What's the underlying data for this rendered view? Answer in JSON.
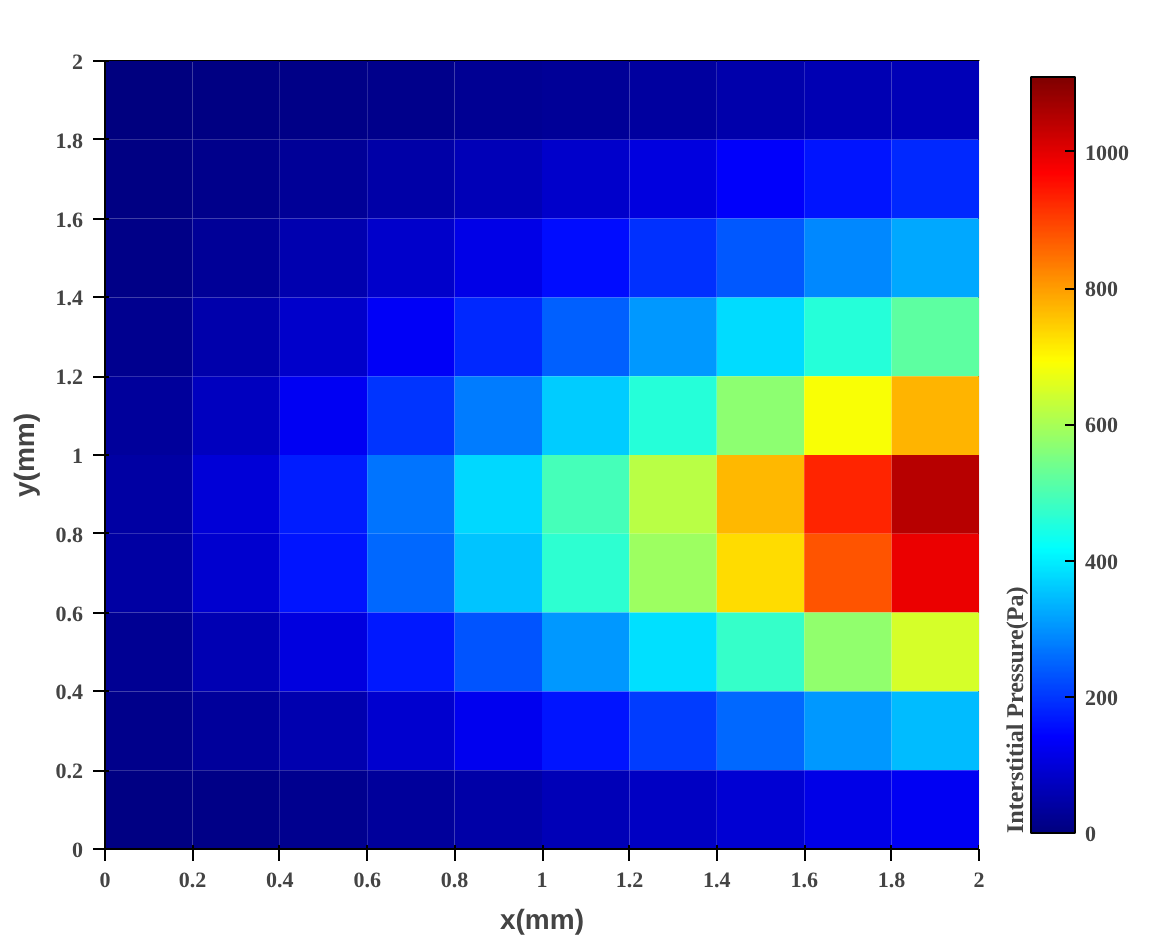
{
  "chart_data": {
    "type": "heatmap",
    "xlabel": "x(mm)",
    "ylabel": "y(mm)",
    "clabel": "Interstitial Pressure(Pa)",
    "x": [
      0.1,
      0.3,
      0.5,
      0.7,
      0.9,
      1.1,
      1.3,
      1.5,
      1.7,
      1.9
    ],
    "y": [
      1.9,
      1.7,
      1.5,
      1.3,
      1.1,
      0.9,
      0.7,
      0.5,
      0.3,
      0.1
    ],
    "cells": [
      [
        3,
        6,
        11,
        17,
        23,
        30,
        38,
        48,
        57,
        65
      ],
      [
        7,
        17,
        30,
        47,
        65,
        86,
        108,
        135,
        163,
        183
      ],
      [
        13,
        30,
        53,
        83,
        116,
        152,
        191,
        238,
        287,
        323
      ],
      [
        21,
        48,
        84,
        132,
        185,
        243,
        306,
        380,
        459,
        517
      ],
      [
        32,
        71,
        127,
        198,
        277,
        364,
        459,
        570,
        689,
        776
      ],
      [
        43,
        96,
        171,
        267,
        373,
        491,
        619,
        768,
        928,
        1046
      ],
      [
        40,
        91,
        162,
        253,
        354,
        466,
        587,
        729,
        880,
        992
      ],
      [
        26,
        59,
        106,
        165,
        231,
        304,
        383,
        475,
        574,
        647
      ],
      [
        14,
        32,
        56,
        88,
        123,
        162,
        204,
        253,
        306,
        345
      ],
      [
        5,
        12,
        21,
        33,
        46,
        61,
        77,
        95,
        115,
        129
      ]
    ],
    "xlim": [
      0,
      2
    ],
    "ylim": [
      0,
      2
    ],
    "xticks": [
      0,
      0.2,
      0.4,
      0.6,
      0.8,
      1,
      1.2,
      1.4,
      1.6,
      1.8,
      2
    ],
    "yticks": [
      0,
      0.2,
      0.4,
      0.6,
      0.8,
      1,
      1.2,
      1.4,
      1.6,
      1.8,
      2
    ],
    "clim": [
      0,
      1110
    ],
    "cticks": [
      0,
      200,
      400,
      600,
      800,
      1000
    ],
    "grid": false
  }
}
